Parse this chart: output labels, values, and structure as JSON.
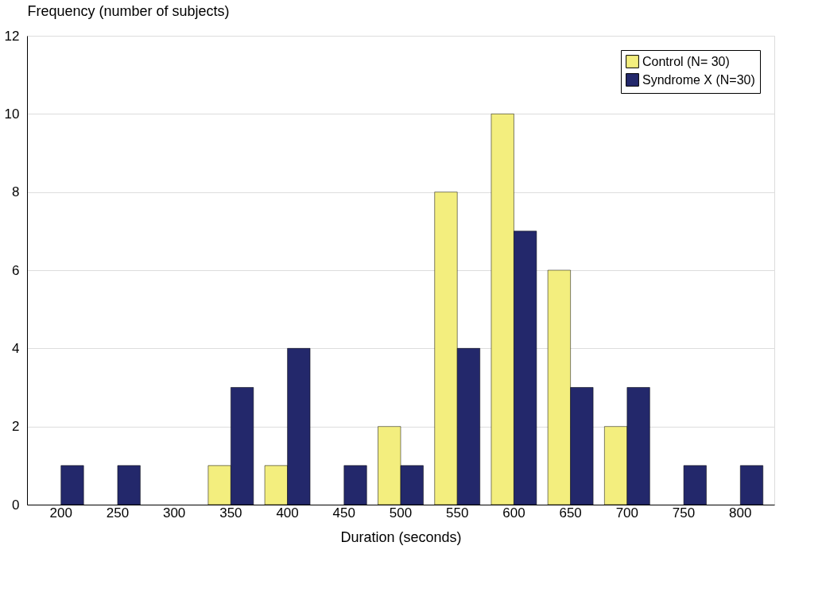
{
  "chart_data": {
    "type": "bar",
    "xlabel": "Duration (seconds)",
    "ylabel": "Frequency (number of subjects)",
    "categories": [
      "200",
      "250",
      "300",
      "350",
      "400",
      "450",
      "500",
      "550",
      "600",
      "650",
      "700",
      "750",
      "800"
    ],
    "series": [
      {
        "name": "Control (N= 30)",
        "color": "#f3ee7e",
        "values": [
          0,
          0,
          0,
          1,
          1,
          0,
          2,
          8,
          10,
          6,
          2,
          0,
          0
        ]
      },
      {
        "name": "Syndrome X (N=30)",
        "color": "#23286b",
        "values": [
          1,
          1,
          0,
          3,
          4,
          1,
          1,
          4,
          7,
          3,
          3,
          1,
          1
        ]
      }
    ],
    "ylim": [
      0,
      12
    ],
    "yticks": [
      0,
      2,
      4,
      6,
      8,
      10,
      12
    ],
    "grid": "y",
    "legend": "top right"
  }
}
